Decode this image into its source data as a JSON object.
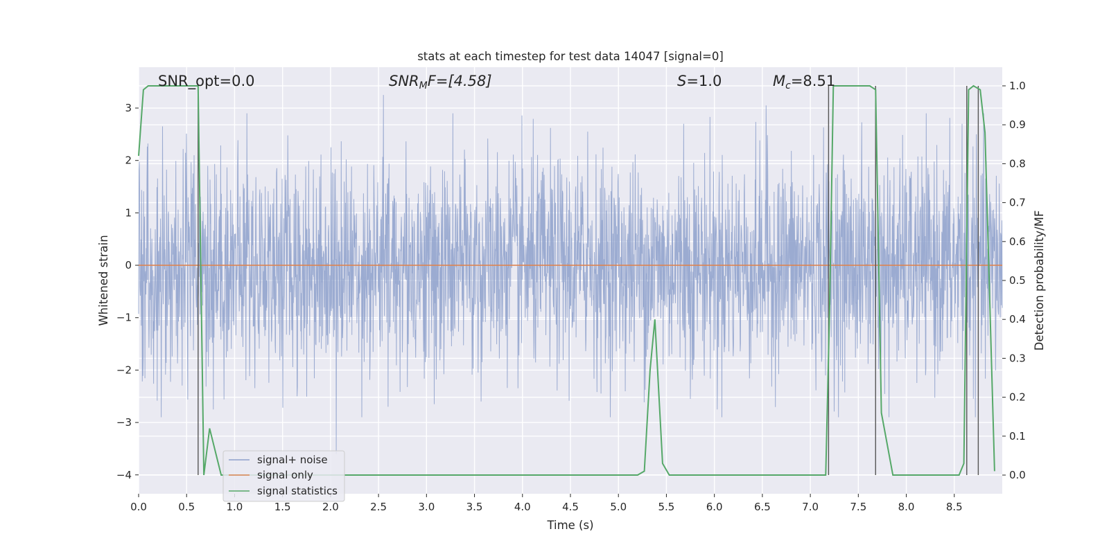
{
  "chart_data": {
    "type": "line",
    "title": "stats at each timestep for test data 14047 [signal=0]",
    "xlabel": "Time (s)",
    "ylabel": "Whitened strain",
    "y2label": "Detection probability/MF",
    "xlim": [
      0,
      9
    ],
    "ylim": [
      -4.36,
      3.78
    ],
    "y2lim": [
      -0.048,
      1.048
    ],
    "xticks": [
      "0.0",
      "0.5",
      "1.0",
      "1.5",
      "2.0",
      "2.5",
      "3.0",
      "3.5",
      "4.0",
      "4.5",
      "5.0",
      "5.5",
      "6.0",
      "6.5",
      "7.0",
      "7.5",
      "8.0",
      "8.5"
    ],
    "yticks": [
      "3",
      "2",
      "1",
      "0",
      "−1",
      "−2",
      "−3",
      "−4"
    ],
    "y2ticks": [
      "1.0",
      "0.9",
      "0.8",
      "0.7",
      "0.6",
      "0.5",
      "0.4",
      "0.3",
      "0.2",
      "0.1",
      "0.0"
    ],
    "grid": true,
    "legend_position": "lower-left",
    "annotations": {
      "snr_opt": "SNR_opt=0.0",
      "snr_mf_pre": "SNR",
      "snr_mf_sub": "M",
      "snr_mf_post": "F=[4.58]",
      "s_pre": "S",
      "s_post": "=1.0",
      "mc_pre": "M",
      "mc_sub": "c",
      "mc_post": "=8.51"
    },
    "series": [
      {
        "name": "signal+ noise",
        "color": "#8da0cb",
        "noise_sigma": 1.0,
        "peaks": [
          [
            2.06,
            -3.6
          ],
          [
            2.55,
            3.25
          ],
          [
            6.54,
            3.05
          ],
          [
            0.25,
            2.65
          ],
          [
            1.13,
            2.9
          ],
          [
            2.6,
            -2.7
          ],
          [
            7.82,
            -2.9
          ],
          [
            5.68,
            2.7
          ],
          [
            8.58,
            2.7
          ],
          [
            3.08,
            -2.65
          ],
          [
            6.03,
            -2.75
          ],
          [
            0.78,
            -2.75
          ],
          [
            3.57,
            -2.6
          ],
          [
            1.65,
            -2.5
          ],
          [
            4.68,
            2.55
          ]
        ]
      },
      {
        "name": "signal only",
        "color": "#dd8452",
        "x": [
          0,
          9
        ],
        "y": [
          0,
          0
        ]
      },
      {
        "name": "signal statistics",
        "color": "#55a868",
        "axis": "right",
        "x": [
          0.0,
          0.05,
          0.1,
          0.62,
          0.68,
          0.74,
          0.86,
          5.2,
          5.27,
          5.33,
          5.38,
          5.46,
          5.53,
          7.16,
          7.2,
          7.24,
          7.62,
          7.68,
          7.74,
          7.86,
          8.55,
          8.6,
          8.65,
          8.7,
          8.77,
          8.82,
          8.92
        ],
        "y": [
          0.82,
          0.99,
          1.0,
          1.0,
          0.0,
          0.12,
          0.0,
          0.0,
          0.01,
          0.27,
          0.4,
          0.03,
          0.0,
          0.0,
          0.42,
          1.0,
          1.0,
          0.99,
          0.16,
          0.0,
          0.0,
          0.03,
          0.99,
          1.0,
          0.99,
          0.88,
          0.01
        ]
      }
    ],
    "vlines": [
      0.62,
      7.19,
      7.68,
      8.63,
      8.75
    ]
  }
}
